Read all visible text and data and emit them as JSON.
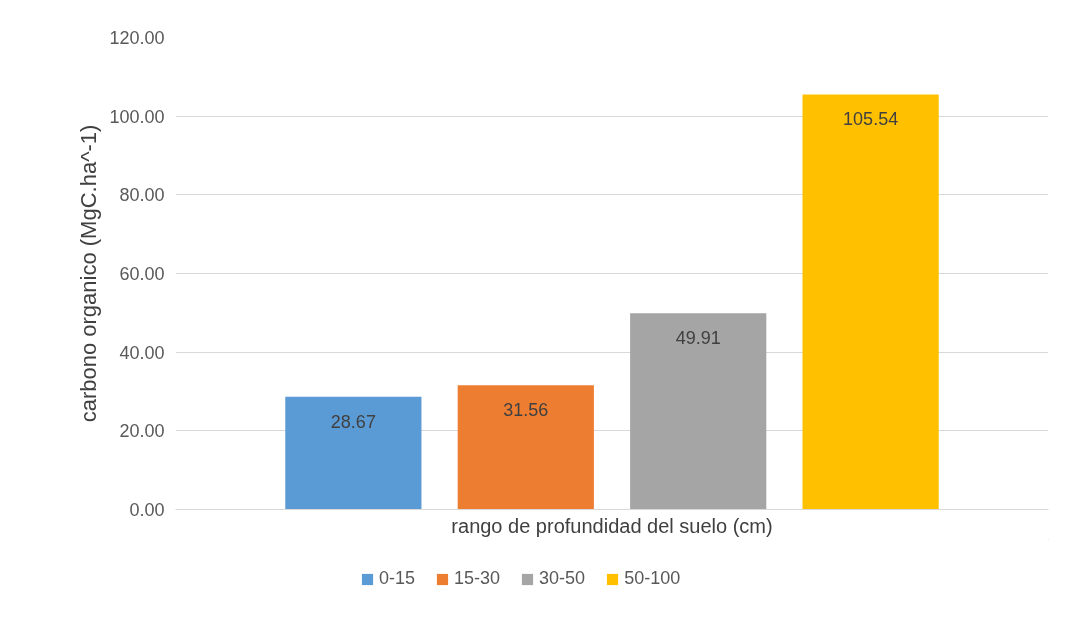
{
  "chart_data": {
    "type": "bar",
    "xlabel": "rango de profundidad del suelo (cm)",
    "ylabel": "carbono organico (MgC.ha^-1)",
    "categories": [
      null
    ],
    "series": [
      {
        "name": "0-15",
        "color": "#5b9bd5",
        "values": [
          28.67
        ]
      },
      {
        "name": "15-30",
        "color": "#ed7d31",
        "values": [
          31.56
        ]
      },
      {
        "name": "30-50",
        "color": "#a5a5a5",
        "values": [
          49.91
        ]
      },
      {
        "name": "50-100",
        "color": "#ffc000",
        "values": [
          105.54
        ]
      }
    ],
    "ylim": [
      0,
      120
    ],
    "yticks": [
      {
        "value": 0,
        "label": "0.00"
      },
      {
        "value": 20,
        "label": "20.00"
      },
      {
        "value": 40,
        "label": "40.00"
      },
      {
        "value": 60,
        "label": "60.00"
      },
      {
        "value": 80,
        "label": "80.00"
      },
      {
        "value": 100,
        "label": "100.00"
      },
      {
        "value": 120,
        "label": "120.00"
      }
    ],
    "grid": "y",
    "legend": "bottom",
    "data_labels": true
  }
}
